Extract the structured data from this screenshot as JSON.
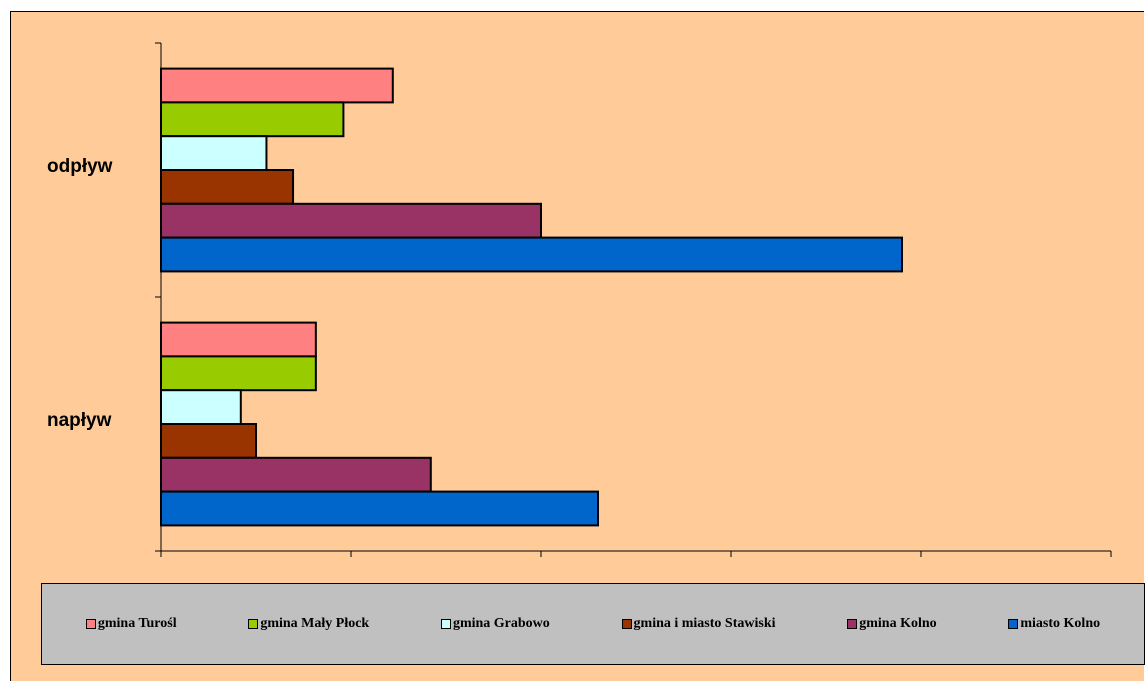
{
  "chart_data": {
    "type": "bar",
    "orientation": "horizontal",
    "categories": [
      "odpływ",
      "napływ"
    ],
    "series": [
      {
        "name": "gmina Turośl",
        "color": "#FF8080",
        "values": [
          24.4,
          16.3
        ]
      },
      {
        "name": "gmina Mały Płock",
        "color": "#99CC00",
        "values": [
          19.2,
          16.3
        ]
      },
      {
        "name": "gmina Grabowo",
        "color": "#CCFFFF",
        "values": [
          11.1,
          8.4
        ]
      },
      {
        "name": "gmina i miasto Stawiski",
        "color": "#993300",
        "values": [
          13.9,
          10.0
        ]
      },
      {
        "name": "gmina Kolno",
        "color": "#993366",
        "values": [
          40.0,
          28.4
        ]
      },
      {
        "name": "miasto Kolno",
        "color": "#0066CC",
        "values": [
          78.0,
          46.0
        ]
      }
    ],
    "xlim": [
      0,
      100
    ],
    "x_tick_labels_shown": false,
    "grid": false,
    "legend": "bottom"
  }
}
